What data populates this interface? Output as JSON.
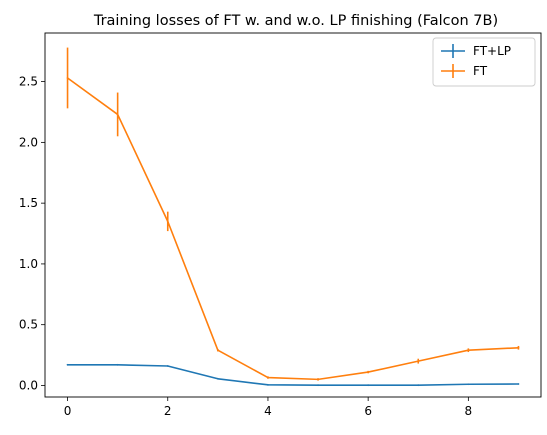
{
  "chart_data": {
    "type": "line",
    "title": "Training losses of FT w. and w.o. LP finishing (Falcon 7B)",
    "xlabel": "",
    "ylabel": "",
    "xlim": [
      -0.45,
      9.45
    ],
    "ylim": [
      -0.095,
      2.9
    ],
    "xticks": [
      0,
      2,
      4,
      6,
      8
    ],
    "xtick_labels": [
      "0",
      "2",
      "4",
      "6",
      "8"
    ],
    "yticks": [
      0.0,
      0.5,
      1.0,
      1.5,
      2.0,
      2.5
    ],
    "ytick_labels": [
      "0.0",
      "0.5",
      "1.0",
      "1.5",
      "2.0",
      "2.5"
    ],
    "grid": false,
    "legend_position": "top-right",
    "x": [
      0,
      1,
      2,
      3,
      4,
      5,
      6,
      7,
      8,
      9
    ],
    "series": [
      {
        "name": "FT+LP",
        "color": "#1f77b4",
        "values": [
          0.17,
          0.17,
          0.16,
          0.055,
          0.005,
          0.002,
          0.002,
          0.002,
          0.01,
          0.012
        ],
        "errors": [
          0.0,
          0.0,
          0.0,
          0.0,
          0.0,
          0.0,
          0.0,
          0.0,
          0.0,
          0.0
        ]
      },
      {
        "name": "FT",
        "color": "#ff7f0e",
        "values": [
          2.53,
          2.23,
          1.35,
          0.29,
          0.065,
          0.05,
          0.11,
          0.2,
          0.29,
          0.31
        ],
        "errors": [
          0.25,
          0.18,
          0.08,
          0.01,
          0.01,
          0.01,
          0.01,
          0.02,
          0.015,
          0.015
        ]
      }
    ]
  }
}
